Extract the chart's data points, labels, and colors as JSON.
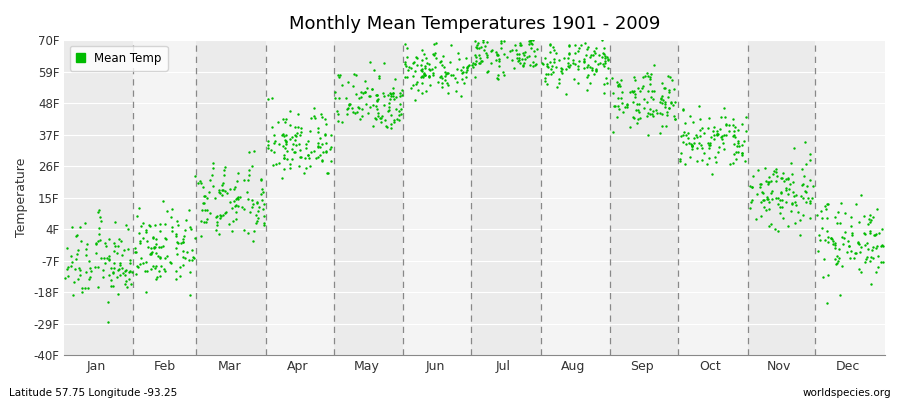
{
  "title": "Monthly Mean Temperatures 1901 - 2009",
  "ylabel": "Temperature",
  "xlabel_bottom_left": "Latitude 57.75 Longitude -93.25",
  "xlabel_bottom_right": "worldspecies.org",
  "legend_label": "Mean Temp",
  "ytick_labels": [
    "70F",
    "59F",
    "48F",
    "37F",
    "26F",
    "15F",
    "4F",
    "-7F",
    "-18F",
    "-29F",
    "-40F"
  ],
  "ytick_values": [
    70,
    59,
    48,
    37,
    26,
    15,
    4,
    -7,
    -18,
    -29,
    -40
  ],
  "ylim": [
    -40,
    70
  ],
  "months": [
    "Jan",
    "Feb",
    "Mar",
    "Apr",
    "May",
    "Jun",
    "Jul",
    "Aug",
    "Sep",
    "Oct",
    "Nov",
    "Dec"
  ],
  "month_centers": [
    15.5,
    46,
    74.5,
    105,
    135.5,
    166,
    196.5,
    227.5,
    258,
    288.5,
    319,
    349.5
  ],
  "month_starts": [
    1,
    32,
    60,
    91,
    121,
    152,
    182,
    213,
    244,
    274,
    305,
    335
  ],
  "dot_color": "#00BB00",
  "bg_color_odd": "#EBEBEB",
  "bg_color_even": "#F4F4F4",
  "mean_temps_fahrenheit": {
    "Jan": -7.6,
    "Feb": -3.1,
    "Mar": 13.0,
    "Apr": 33.8,
    "May": 49.1,
    "Jun": 59.9,
    "Jul": 65.3,
    "Aug": 61.7,
    "Sep": 49.1,
    "Oct": 34.7,
    "Nov": 16.7,
    "Dec": 0.5
  },
  "spread_fahrenheit": {
    "Jan": 7.0,
    "Feb": 6.5,
    "Mar": 7.0,
    "Apr": 6.0,
    "May": 5.5,
    "Jun": 4.5,
    "Jul": 3.5,
    "Aug": 4.0,
    "Sep": 5.0,
    "Oct": 5.5,
    "Nov": 7.0,
    "Dec": 7.0
  },
  "num_years": 109
}
